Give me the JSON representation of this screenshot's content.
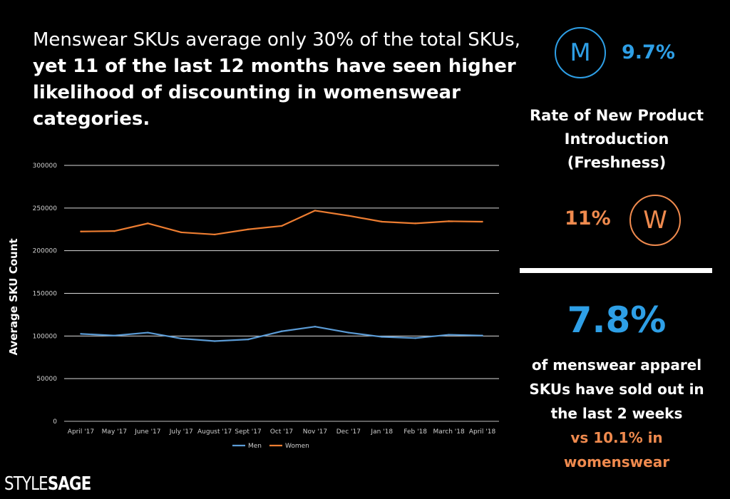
{
  "headline": {
    "part1": "Menswear SKUs average only 30% of the total SKUs,",
    "part2": "yet 11 of the last 12 months have seen higher likelihood of discounting in womenswear categories."
  },
  "freshness": {
    "men_letter": "M",
    "men_value": "9.7%",
    "label": "Rate of New Product Introduction (Freshness)",
    "women_value": "11%",
    "women_letter": "W"
  },
  "soldout": {
    "big_value": "7.8%",
    "text": "of menswear apparel SKUs have sold out in the last 2 weeks",
    "comparison": "vs 10.1% in womenswear"
  },
  "logo": {
    "part1": "STYLE",
    "part2": "SAGE"
  },
  "colors": {
    "men": "#5b9bd5",
    "women": "#ed7d31",
    "accent_blue": "#2e9fe6",
    "accent_orange": "#ef8a4e"
  },
  "chart_data": {
    "type": "line",
    "title": "",
    "xlabel": "",
    "ylabel": "Average SKU Count",
    "ylim": [
      0,
      300000
    ],
    "yticks": [
      0,
      50000,
      100000,
      150000,
      200000,
      250000,
      300000
    ],
    "grid": true,
    "legend": "bottom",
    "categories": [
      "April '17",
      "May '17",
      "June '17",
      "July '17",
      "August '17",
      "Sept '17",
      "Oct '17",
      "Nov '17",
      "Dec '17",
      "Jan '18",
      "Feb '18",
      "March '18",
      "April '18"
    ],
    "series": [
      {
        "name": "Men",
        "color": "#5b9bd5",
        "values": [
          102500,
          100500,
          104000,
          97000,
          94000,
          96000,
          105500,
          111000,
          104000,
          99000,
          97500,
          101500,
          100500
        ]
      },
      {
        "name": "Women",
        "color": "#ed7d31",
        "values": [
          222500,
          223000,
          232000,
          221500,
          219000,
          225000,
          229000,
          247000,
          241000,
          234000,
          232000,
          234500,
          234000
        ]
      }
    ]
  }
}
